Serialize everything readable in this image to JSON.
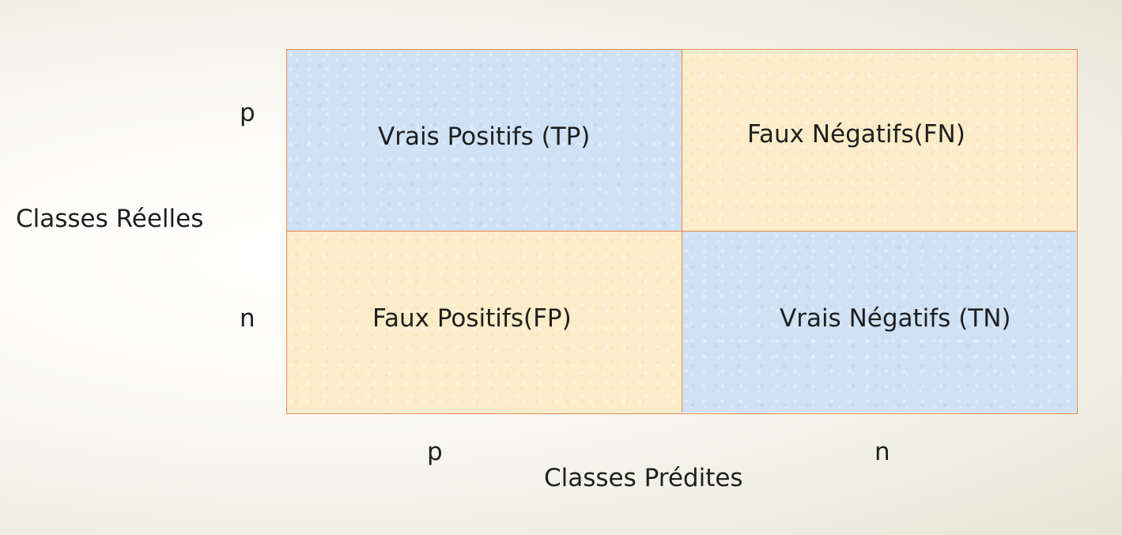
{
  "axes": {
    "y_title": "Classes Réelles",
    "x_title": "Classes Prédites",
    "row_labels": [
      "p",
      "n"
    ],
    "col_labels": [
      "p",
      "n"
    ]
  },
  "cells": {
    "tp": "Vrais Positifs  (TP)",
    "fn": "Faux Négatifs(FN)",
    "fp": "Faux Positifs(FP)",
    "tn": "Vrais Négatifs  (TN)"
  },
  "colors": {
    "positive_correct": "#cfe1f5",
    "error": "#fcecc9",
    "grid_line": "#e8894f"
  }
}
